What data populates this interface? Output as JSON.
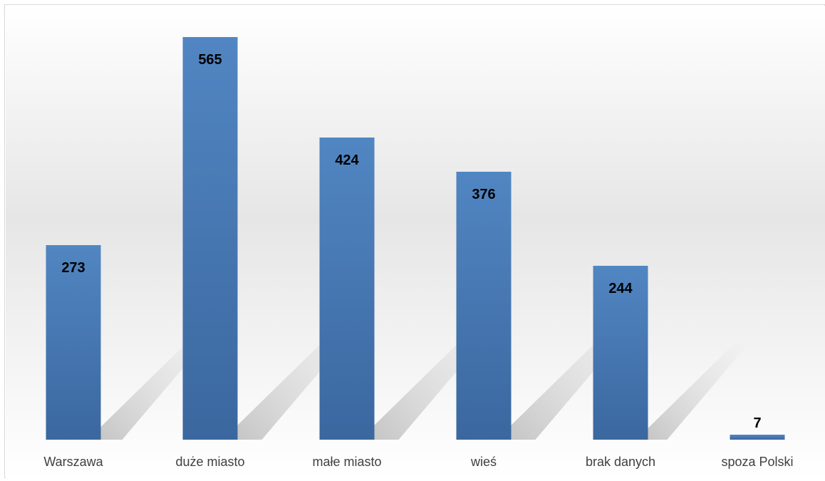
{
  "chart_data": {
    "type": "bar",
    "categories": [
      "Warszawa",
      "duże miasto",
      "małe miasto",
      "wieś",
      "brak danych",
      "spoza Polski"
    ],
    "values": [
      273,
      565,
      424,
      376,
      244,
      7
    ],
    "title": "",
    "xlabel": "",
    "ylabel": "",
    "ylim": [
      0,
      610
    ],
    "grid": false,
    "legend": "none",
    "data_labels": "inside-top",
    "colors": {
      "bar": "#4f81bd",
      "bar_dark": "#3a66a0",
      "plot_background_mid": "#d9d9d9",
      "label_text": "#000000",
      "category_text": "#404040"
    }
  }
}
